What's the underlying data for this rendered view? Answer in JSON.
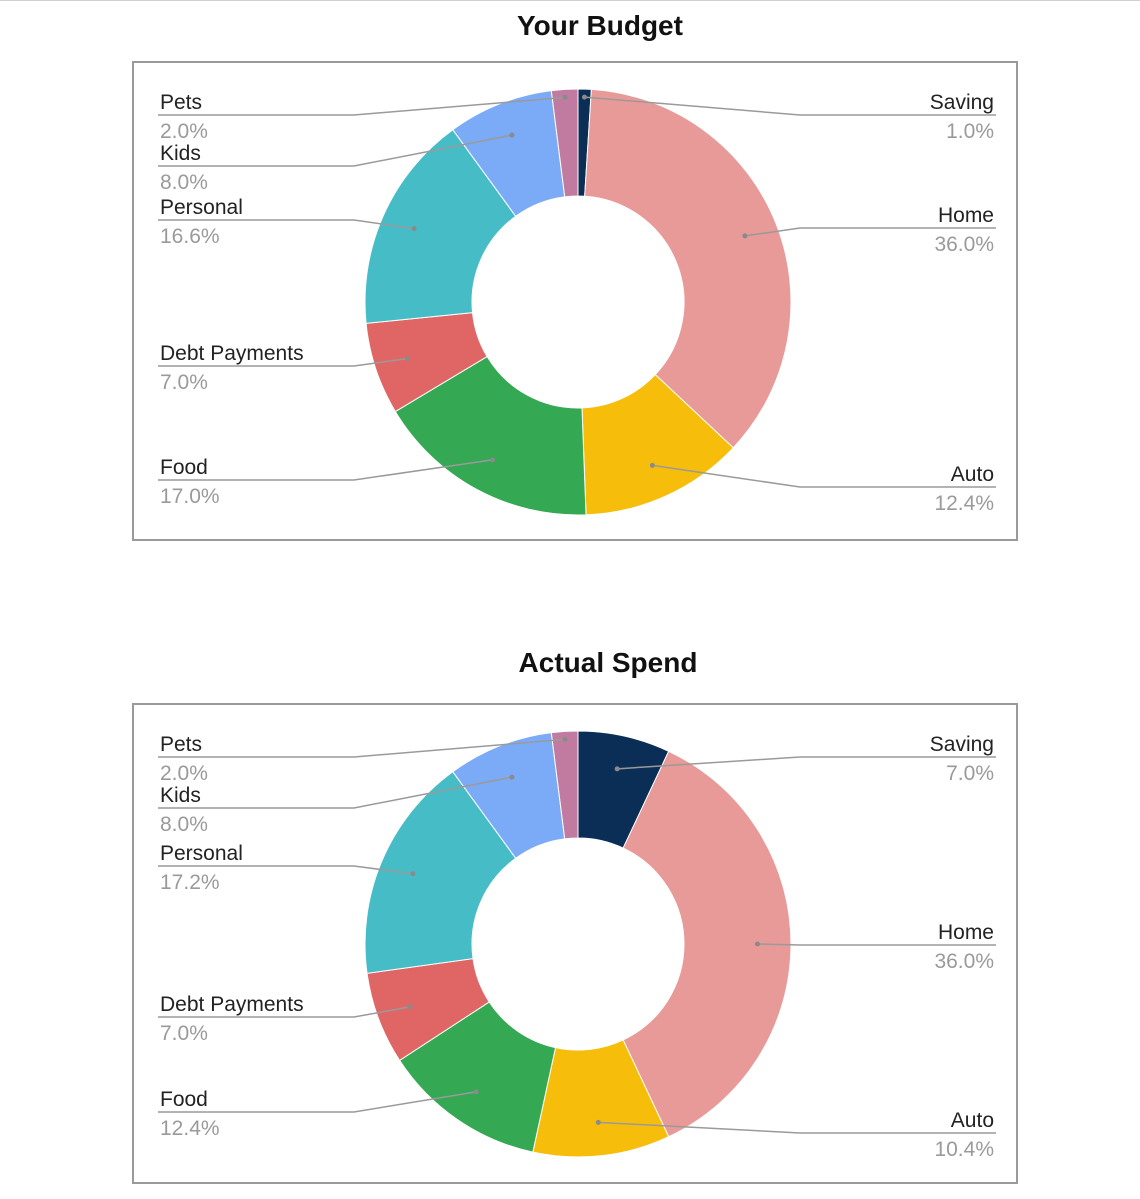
{
  "charts": [
    {
      "title": "Your Budget",
      "chart_data": {
        "type": "pie",
        "donut": true,
        "title": "Your Budget",
        "slices": [
          {
            "label": "Saving",
            "value": 1.0,
            "display": "1.0%",
            "color": "#0b2e57"
          },
          {
            "label": "Home",
            "value": 36.0,
            "display": "36.0%",
            "color": "#e89a98"
          },
          {
            "label": "Auto",
            "value": 12.4,
            "display": "12.4%",
            "color": "#f7bd0b"
          },
          {
            "label": "Food",
            "value": 17.0,
            "display": "17.0%",
            "color": "#34a853"
          },
          {
            "label": "Debt Payments",
            "value": 7.0,
            "display": "7.0%",
            "color": "#e06666"
          },
          {
            "label": "Personal",
            "value": 16.6,
            "display": "16.6%",
            "color": "#46bdc6"
          },
          {
            "label": "Kids",
            "value": 8.0,
            "display": "8.0%",
            "color": "#7baaf7"
          },
          {
            "label": "Pets",
            "value": 2.0,
            "display": "2.0%",
            "color": "#c27ba0"
          }
        ]
      }
    },
    {
      "title": "Actual Spend",
      "chart_data": {
        "type": "pie",
        "donut": true,
        "title": "Actual Spend",
        "slices": [
          {
            "label": "Saving",
            "value": 7.0,
            "display": "7.0%",
            "color": "#0b2e57"
          },
          {
            "label": "Home",
            "value": 36.0,
            "display": "36.0%",
            "color": "#e89a98"
          },
          {
            "label": "Auto",
            "value": 10.4,
            "display": "10.4%",
            "color": "#f7bd0b"
          },
          {
            "label": "Food",
            "value": 12.4,
            "display": "12.4%",
            "color": "#34a853"
          },
          {
            "label": "Debt Payments",
            "value": 7.0,
            "display": "7.0%",
            "color": "#e06666"
          },
          {
            "label": "Personal",
            "value": 17.2,
            "display": "17.2%",
            "color": "#46bdc6"
          },
          {
            "label": "Kids",
            "value": 8.0,
            "display": "8.0%",
            "color": "#7baaf7"
          },
          {
            "label": "Pets",
            "value": 2.0,
            "display": "2.0%",
            "color": "#c27ba0"
          }
        ]
      }
    }
  ]
}
